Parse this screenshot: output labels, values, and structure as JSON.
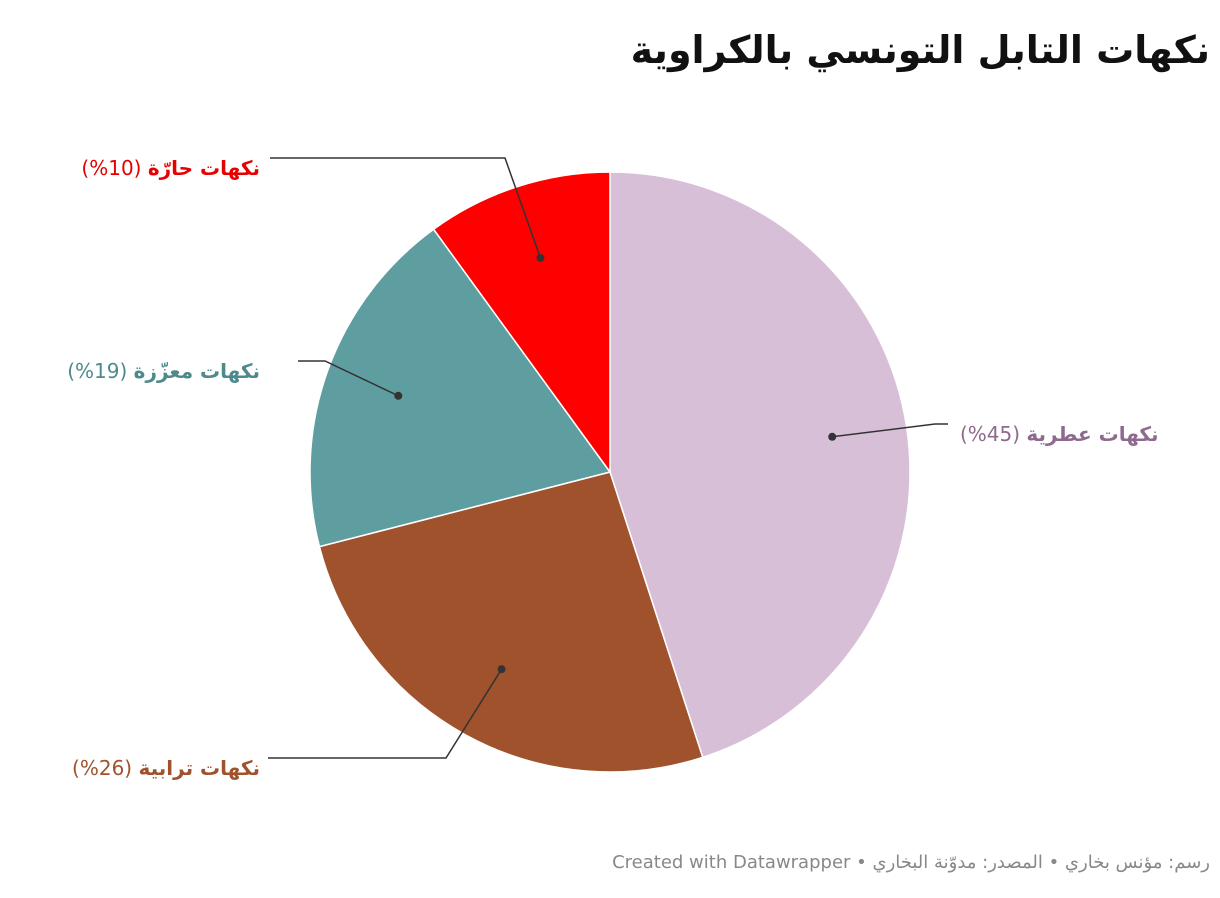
{
  "chart_data": {
    "type": "pie",
    "title": "نكهات التابل التونسي بالكراوية",
    "categories": [
      "نكهات عطرية",
      "نكهات ترابية",
      "نكهات معزّزة",
      "نكهات حارّة"
    ],
    "values": [
      45,
      26,
      19,
      10
    ],
    "value_labels": [
      "(%45)",
      "(%26)",
      "(%19)",
      "(%10)"
    ],
    "colors": [
      "#d8bfd8",
      "#a0522d",
      "#5f9ea0",
      "#ff0000"
    ],
    "label_colors": [
      "#8e6b8e",
      "#a0522d",
      "#4d8a8c",
      "#e60000"
    ],
    "note": "رسم: مؤنس بخاري • المصدر: مدوّنة البخاري • Created with Datawrapper"
  }
}
